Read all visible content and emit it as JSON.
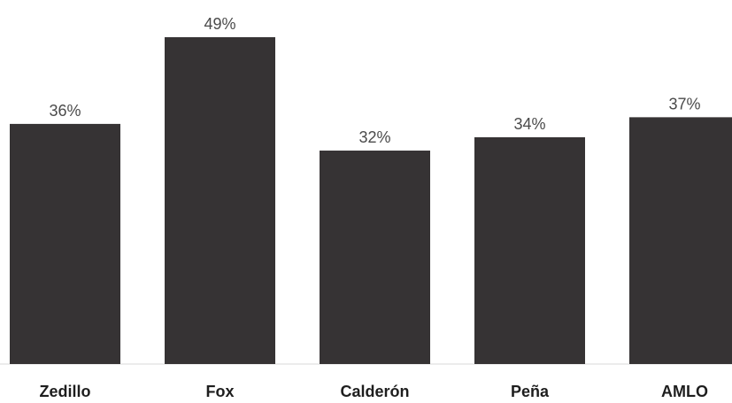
{
  "chart_data": {
    "type": "bar",
    "categories": [
      "Zedillo",
      "Fox",
      "Calderón",
      "Peña",
      "AMLO"
    ],
    "values": [
      36,
      49,
      32,
      34,
      37
    ],
    "value_labels": [
      "36%",
      "49%",
      "32%",
      "34%",
      "37%"
    ],
    "title": "",
    "xlabel": "",
    "ylabel": "",
    "ylim": [
      0,
      49
    ],
    "grid": false,
    "legend": "none",
    "colors": {
      "bar": "#363334"
    }
  }
}
